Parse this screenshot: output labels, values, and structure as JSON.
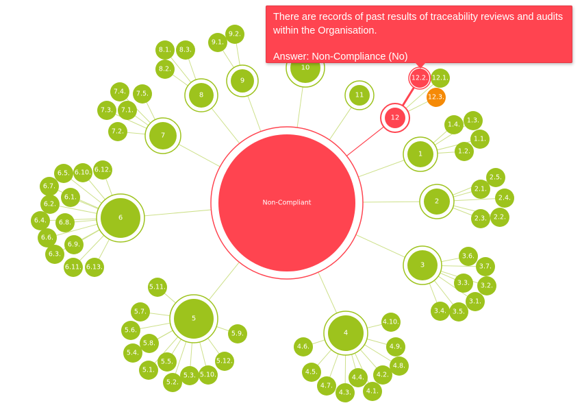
{
  "colors": {
    "green": "#9dc31d",
    "red": "#ff4450",
    "orange": "#f58a07",
    "link": "#cde08a",
    "link_active": "#ff4450"
  },
  "tooltip": {
    "text": "There are records of past results of traceability reviews and audits within the Organisation.",
    "answer": "Answer: Non-Compliance (No)"
  },
  "root": {
    "label": "Non-Compliant",
    "status": "red"
  },
  "sections": [
    {
      "label": "1",
      "status": "green",
      "children": [
        "1.1.",
        "1.2.",
        "1.3.",
        "1.4."
      ]
    },
    {
      "label": "2",
      "status": "green",
      "children": [
        "2.1.",
        "2.2.",
        "2.3.",
        "2.4.",
        "2.5."
      ]
    },
    {
      "label": "3",
      "status": "green",
      "children": [
        "3.1.",
        "3.2.",
        "3.3.",
        "3.4.",
        "3.5.",
        "3.6.",
        "3.7."
      ]
    },
    {
      "label": "4",
      "status": "green",
      "children": [
        "4.1.",
        "4.2.",
        "4.3.",
        "4.4.",
        "4.5.",
        "4.6.",
        "4.7.",
        "4.8.",
        "4.9.",
        "4.10."
      ]
    },
    {
      "label": "5",
      "status": "green",
      "children": [
        "5.1.",
        "5.2.",
        "5.3.",
        "5.4.",
        "5.5.",
        "5.6.",
        "5.7.",
        "5.8.",
        "5.9.",
        "5.10.",
        "5.11.",
        "5.12."
      ]
    },
    {
      "label": "6",
      "status": "green",
      "children": [
        "6.1.",
        "6.2.",
        "6.3.",
        "6.4.",
        "6.5.",
        "6.6.",
        "6.7.",
        "6.8.",
        "6.9.",
        "6.10.",
        "6.11.",
        "6.12.",
        "6.13."
      ]
    },
    {
      "label": "7",
      "status": "green",
      "children": [
        "7.1.",
        "7.2.",
        "7.3.",
        "7.4.",
        "7.5."
      ]
    },
    {
      "label": "8",
      "status": "green",
      "children": [
        "8.1.",
        "8.2.",
        "8.3."
      ]
    },
    {
      "label": "9",
      "status": "green",
      "children": [
        "9.1.",
        "9.2."
      ]
    },
    {
      "label": "10",
      "status": "green",
      "children": []
    },
    {
      "label": "11",
      "status": "green",
      "children": []
    },
    {
      "label": "12",
      "status": "red",
      "active": true,
      "children": [
        {
          "label": "12.1.",
          "status": "green"
        },
        {
          "label": "12.2.",
          "status": "red",
          "active": true
        },
        {
          "label": "12.3.",
          "status": "orange"
        }
      ]
    }
  ]
}
